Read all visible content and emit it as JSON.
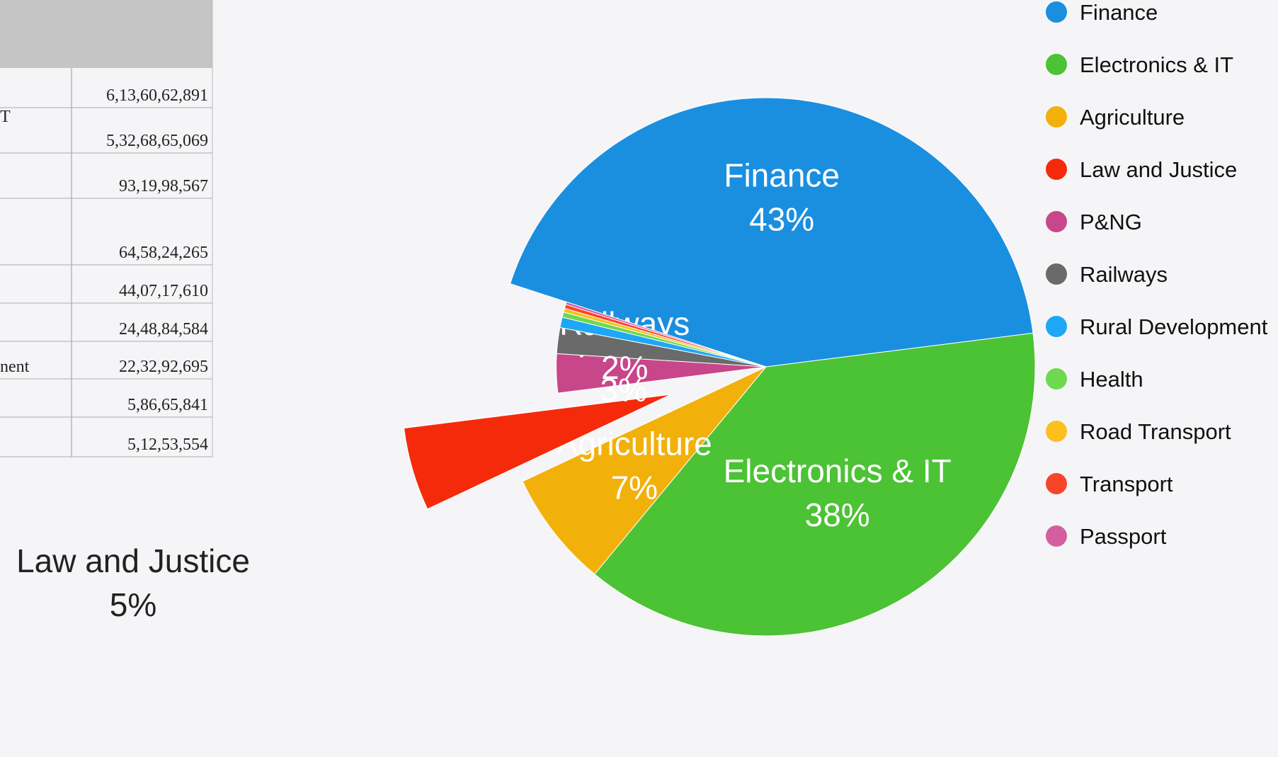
{
  "table": {
    "rows": [
      {
        "amount": "6,13,60,62,891"
      },
      {
        "label": "T",
        "amount": "5,32,68,65,069"
      },
      {
        "amount": "93,19,98,567"
      },
      {
        "amount": "64,58,24,265"
      },
      {
        "amount": "44,07,17,610"
      },
      {
        "amount": "24,48,84,584"
      },
      {
        "label": "nent",
        "amount": "22,32,92,695"
      },
      {
        "amount": "5,86,65,841"
      },
      {
        "amount": "5,12,53,554"
      }
    ]
  },
  "chart_data": {
    "type": "pie",
    "categories": [
      "Finance",
      "Electronics & IT",
      "Agriculture",
      "Law and Justice",
      "P&NG",
      "Railways",
      "Rural Development",
      "Health",
      "Road Transport",
      "Transport",
      "Passport"
    ],
    "values": [
      43,
      38,
      7,
      5,
      3,
      2,
      0.8,
      0.4,
      0.3,
      0.3,
      0.2
    ],
    "value_labels": [
      "43%",
      "38%",
      "7%",
      "5%",
      "3%",
      "2%",
      null,
      null,
      null,
      null,
      null
    ],
    "colors": [
      "#1a8fe0",
      "#4cc235",
      "#f2b10a",
      "#f52a0b",
      "#c8468a",
      "#6a6a6a",
      "#1ea7f5",
      "#6ed94e",
      "#fbbf1e",
      "#f7452a",
      "#d45fa0"
    ],
    "exploded": "Law and Justice",
    "legend": "top-right"
  }
}
